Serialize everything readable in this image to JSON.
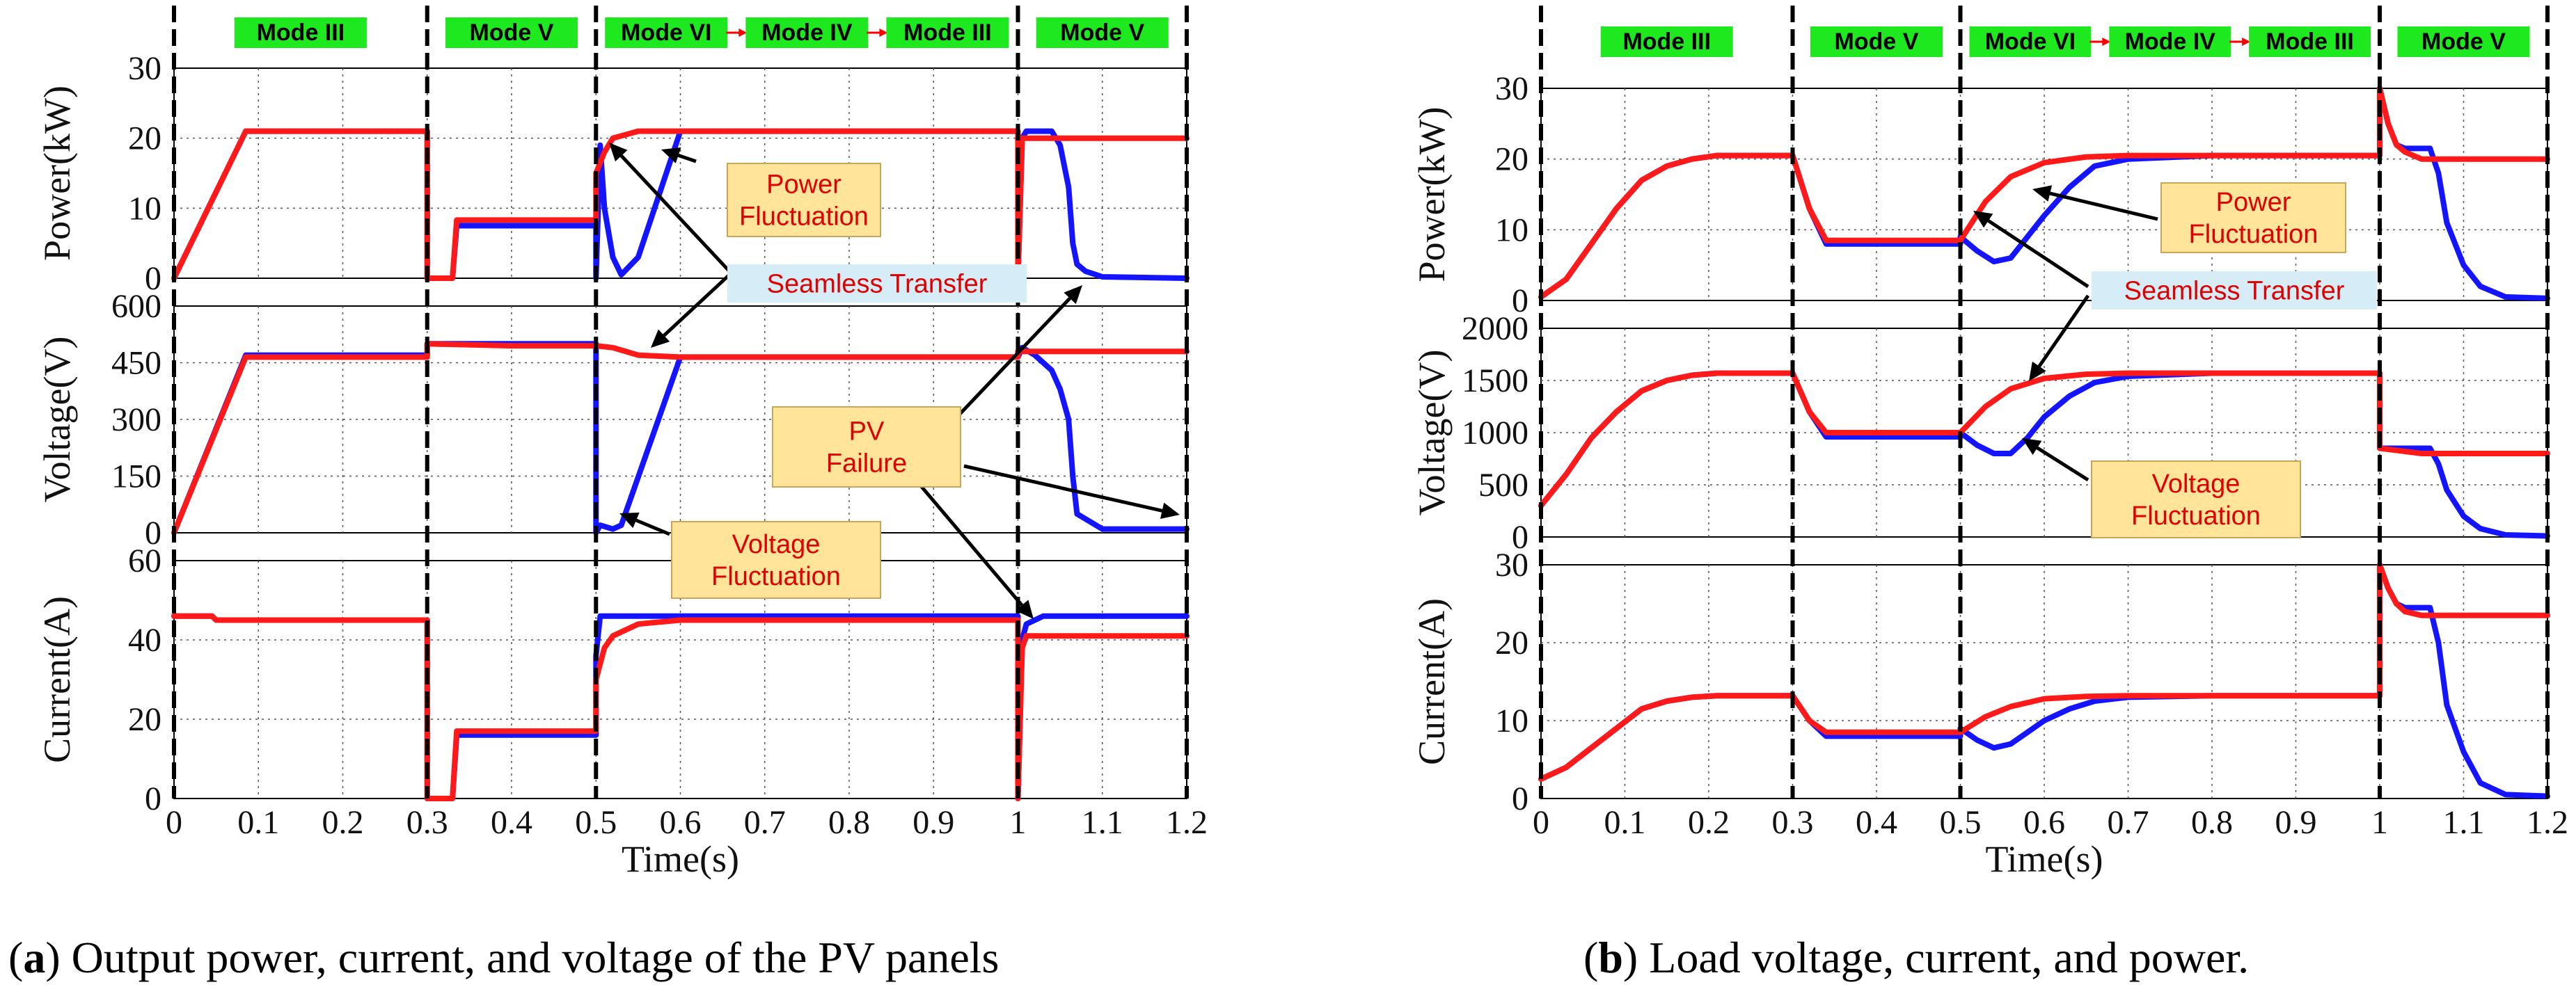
{
  "colors": {
    "pv": "#1414ff",
    "load": "#ff1a1a",
    "mode_fill": "#1ee81e",
    "callout_fill": "#ffe49a",
    "callout_text": "#e00000",
    "seamless_fill": "#d6edf7"
  },
  "figure": {
    "caption_a_letter": "a",
    "caption_a_text": "Output power, current, and voltage of the PV panels",
    "caption_b_letter": "b",
    "caption_b_text": "Load voltage, current, and power."
  },
  "chart_data": [
    {
      "id": "a",
      "type": "line",
      "xlabel": "Time(s)",
      "xlim": [
        0,
        1.2
      ],
      "xticks": [
        "0",
        "0.1",
        "0.2",
        "0.3",
        "0.4",
        "0.5",
        "0.6",
        "0.7",
        "0.8",
        "0.9",
        "1",
        "1.1",
        "1.2"
      ],
      "transitions": [
        0.3,
        0.5,
        1.0
      ],
      "modes": [
        {
          "t0": 0.0,
          "t1": 0.3,
          "labels": [
            "Mode III"
          ]
        },
        {
          "t0": 0.3,
          "t1": 0.5,
          "labels": [
            "Mode V"
          ]
        },
        {
          "t0": 0.5,
          "t1": 1.0,
          "labels": [
            "Mode VI",
            "Mode IV",
            "Mode III"
          ]
        },
        {
          "t0": 1.0,
          "t1": 1.2,
          "labels": [
            "Mode V"
          ]
        }
      ],
      "panels": [
        {
          "ylabel": "Power(kW)",
          "ylim": [
            0,
            30
          ],
          "yticks": [
            "0",
            "10",
            "20",
            "30"
          ],
          "series": [
            {
              "name": "blue",
              "x": [
                0,
                0.085,
                0.3,
                0.3,
                0.33,
                0.335,
                0.5,
                0.5,
                0.505,
                0.51,
                0.52,
                0.53,
                0.55,
                0.6,
                0.65,
                1.0,
                1.0,
                1.005,
                1.01,
                1.04,
                1.05,
                1.06,
                1.065,
                1.07,
                1.08,
                1.1,
                1.2
              ],
              "y": [
                0,
                21,
                21,
                0,
                0,
                7.5,
                7.5,
                0,
                19,
                10,
                3,
                0.5,
                3,
                21,
                21,
                21,
                0,
                20,
                21,
                21,
                19,
                13,
                5,
                2,
                1,
                0.2,
                0
              ]
            },
            {
              "name": "red",
              "x": [
                0,
                0.085,
                0.3,
                0.3,
                0.33,
                0.335,
                0.5,
                0.5,
                0.51,
                0.52,
                0.55,
                0.6,
                1.0,
                1.0,
                1.005,
                1.2
              ],
              "y": [
                0,
                21,
                21,
                0,
                0,
                8.3,
                8.3,
                15,
                18,
                20,
                21,
                21,
                21,
                0,
                20,
                20
              ]
            }
          ]
        },
        {
          "ylabel": "Voltage(V)",
          "ylim": [
            0,
            600
          ],
          "yticks": [
            "0",
            "150",
            "300",
            "450",
            "600"
          ],
          "series": [
            {
              "name": "blue",
              "x": [
                0,
                0.085,
                0.3,
                0.3,
                0.5,
                0.5,
                0.505,
                0.52,
                0.53,
                0.6,
                1.0,
                1.005,
                1.02,
                1.04,
                1.05,
                1.06,
                1.065,
                1.07,
                1.1,
                1.2
              ],
              "y": [
                0,
                470,
                470,
                500,
                500,
                0,
                20,
                10,
                20,
                465,
                465,
                490,
                470,
                430,
                380,
                300,
                150,
                50,
                10,
                10
              ]
            },
            {
              "name": "red",
              "x": [
                0,
                0.085,
                0.3,
                0.3,
                0.4,
                0.5,
                0.52,
                0.55,
                0.6,
                0.7,
                1.0,
                1.0,
                1.2
              ],
              "y": [
                0,
                465,
                465,
                500,
                495,
                495,
                490,
                470,
                465,
                465,
                465,
                480,
                480
              ]
            }
          ]
        },
        {
          "ylabel": "Current(A)",
          "ylim": [
            0,
            60
          ],
          "yticks": [
            "0",
            "20",
            "40",
            "60"
          ],
          "series": [
            {
              "name": "blue",
              "x": [
                0,
                0.045,
                0.05,
                0.3,
                0.3,
                0.33,
                0.335,
                0.5,
                0.5,
                0.505,
                0.6,
                1.0,
                1.0,
                1.005,
                1.01,
                1.02,
                1.03,
                1.2
              ],
              "y": [
                46,
                46,
                45,
                45,
                0,
                0,
                16,
                16,
                36,
                46,
                46,
                46,
                0,
                40,
                44,
                45,
                46,
                46
              ]
            },
            {
              "name": "red",
              "x": [
                0,
                0.045,
                0.05,
                0.3,
                0.3,
                0.33,
                0.335,
                0.5,
                0.5,
                0.51,
                0.52,
                0.55,
                0.6,
                1.0,
                1.0,
                1.005,
                1.01,
                1.02,
                1.2
              ],
              "y": [
                46,
                46,
                45,
                45,
                0,
                0,
                17,
                17,
                30,
                38,
                41,
                44,
                45,
                45,
                0,
                38,
                41,
                41,
                41
              ]
            }
          ]
        }
      ],
      "annotations": [
        {
          "lines": [
            "Power",
            "Fluctuation"
          ],
          "kind": "callout"
        },
        {
          "lines": [
            "Seamless Transfer"
          ],
          "kind": "seamless"
        },
        {
          "lines": [
            "PV",
            "Failure"
          ],
          "kind": "callout"
        },
        {
          "lines": [
            "Voltage",
            "Fluctuation"
          ],
          "kind": "callout"
        }
      ]
    },
    {
      "id": "b",
      "type": "line",
      "xlabel": "Time(s)",
      "xlim": [
        0,
        1.2
      ],
      "xticks": [
        "0",
        "0.1",
        "0.2",
        "0.3",
        "0.4",
        "0.5",
        "0.6",
        "0.7",
        "0.8",
        "0.9",
        "1",
        "1.1",
        "1.2"
      ],
      "transitions": [
        0.3,
        0.5,
        1.0
      ],
      "modes": [
        {
          "t0": 0.0,
          "t1": 0.3,
          "labels": [
            "Mode III"
          ]
        },
        {
          "t0": 0.3,
          "t1": 0.5,
          "labels": [
            "Mode V"
          ]
        },
        {
          "t0": 0.5,
          "t1": 1.0,
          "labels": [
            "Mode VI",
            "Mode IV",
            "Mode III"
          ]
        },
        {
          "t0": 1.0,
          "t1": 1.2,
          "labels": [
            "Mode V"
          ]
        }
      ],
      "panels": [
        {
          "ylabel": "Power(kW)",
          "ylim": [
            0,
            30
          ],
          "yticks": [
            "0",
            "10",
            "20",
            "30"
          ],
          "series": [
            {
              "name": "blue",
              "x": [
                0,
                0.03,
                0.06,
                0.09,
                0.12,
                0.15,
                0.18,
                0.21,
                0.3,
                0.3,
                0.32,
                0.34,
                0.5,
                0.5,
                0.52,
                0.54,
                0.56,
                0.58,
                0.6,
                0.63,
                0.66,
                0.7,
                0.8,
                1.0,
                1.0,
                1.01,
                1.02,
                1.03,
                1.06,
                1.07,
                1.08,
                1.1,
                1.12,
                1.15,
                1.2
              ],
              "y": [
                0.5,
                3,
                8,
                13,
                17,
                19,
                20,
                20.5,
                20.5,
                20.5,
                13,
                8,
                8,
                9,
                7,
                5.5,
                6,
                9,
                12,
                16,
                19,
                20,
                20.5,
                20.5,
                30,
                25,
                22,
                21.5,
                21.5,
                18,
                11,
                5,
                2,
                0.5,
                0.3
              ]
            },
            {
              "name": "red",
              "x": [
                0,
                0.03,
                0.06,
                0.09,
                0.12,
                0.15,
                0.18,
                0.21,
                0.3,
                0.3,
                0.32,
                0.34,
                0.5,
                0.5,
                0.53,
                0.56,
                0.6,
                0.65,
                0.7,
                1.0,
                1.0,
                1.01,
                1.02,
                1.03,
                1.05,
                1.2
              ],
              "y": [
                0.5,
                3,
                8,
                13,
                17,
                19,
                20,
                20.5,
                20.5,
                20.5,
                13,
                8.5,
                8.5,
                8.5,
                14,
                17.5,
                19.5,
                20.3,
                20.5,
                20.5,
                30,
                25,
                22,
                21,
                20,
                20
              ]
            }
          ]
        },
        {
          "ylabel": "Voltage(V)",
          "ylim": [
            0,
            2000
          ],
          "yticks": [
            "0",
            "500",
            "1000",
            "1500",
            "2000"
          ],
          "series": [
            {
              "name": "blue",
              "x": [
                0,
                0.03,
                0.06,
                0.09,
                0.12,
                0.15,
                0.18,
                0.21,
                0.3,
                0.3,
                0.32,
                0.34,
                0.5,
                0.5,
                0.52,
                0.54,
                0.56,
                0.58,
                0.6,
                0.63,
                0.66,
                0.7,
                0.8,
                1.0,
                1.0,
                1.01,
                1.06,
                1.07,
                1.08,
                1.1,
                1.12,
                1.15,
                1.2
              ],
              "y": [
                300,
                600,
                950,
                1200,
                1400,
                1500,
                1550,
                1570,
                1570,
                1570,
                1200,
                960,
                960,
                1000,
                880,
                800,
                800,
                950,
                1150,
                1350,
                1480,
                1540,
                1570,
                1570,
                850,
                850,
                850,
                700,
                450,
                200,
                80,
                20,
                10
              ]
            },
            {
              "name": "red",
              "x": [
                0,
                0.03,
                0.06,
                0.09,
                0.12,
                0.15,
                0.18,
                0.21,
                0.3,
                0.3,
                0.32,
                0.34,
                0.5,
                0.5,
                0.53,
                0.56,
                0.6,
                0.65,
                0.7,
                1.0,
                1.0,
                1.03,
                1.05,
                1.2
              ],
              "y": [
                300,
                600,
                950,
                1200,
                1400,
                1500,
                1550,
                1570,
                1570,
                1570,
                1200,
                1000,
                1000,
                1000,
                1250,
                1420,
                1520,
                1560,
                1570,
                1570,
                850,
                820,
                800,
                800
              ]
            }
          ]
        },
        {
          "ylabel": "Current(A)",
          "ylim": [
            0,
            30
          ],
          "yticks": [
            "0",
            "10",
            "20",
            "30"
          ],
          "series": [
            {
              "name": "blue",
              "x": [
                0,
                0.03,
                0.06,
                0.09,
                0.12,
                0.15,
                0.18,
                0.21,
                0.3,
                0.3,
                0.32,
                0.34,
                0.5,
                0.5,
                0.52,
                0.54,
                0.56,
                0.58,
                0.6,
                0.63,
                0.66,
                0.7,
                0.8,
                1.0,
                1.0,
                1.01,
                1.02,
                1.03,
                1.06,
                1.07,
                1.08,
                1.1,
                1.12,
                1.15,
                1.2
              ],
              "y": [
                2.5,
                4,
                6.5,
                9,
                11.5,
                12.5,
                13,
                13.2,
                13.2,
                13.2,
                10,
                8,
                8,
                9,
                7.5,
                6.5,
                7,
                8.5,
                10,
                11.5,
                12.5,
                13,
                13.2,
                13.2,
                30,
                27,
                25,
                24.5,
                24.5,
                20,
                12,
                6,
                2,
                0.5,
                0.3
              ]
            },
            {
              "name": "red",
              "x": [
                0,
                0.03,
                0.06,
                0.09,
                0.12,
                0.15,
                0.18,
                0.21,
                0.3,
                0.3,
                0.32,
                0.34,
                0.5,
                0.5,
                0.53,
                0.56,
                0.6,
                0.65,
                0.7,
                1.0,
                1.0,
                1.01,
                1.02,
                1.03,
                1.05,
                1.2
              ],
              "y": [
                2.5,
                4,
                6.5,
                9,
                11.5,
                12.5,
                13,
                13.2,
                13.2,
                13.2,
                10,
                8.5,
                8.5,
                8.5,
                10.5,
                11.8,
                12.8,
                13.1,
                13.2,
                13.2,
                30,
                27,
                25,
                24,
                23.5,
                23.5
              ]
            }
          ]
        }
      ],
      "annotations": [
        {
          "lines": [
            "Power",
            "Fluctuation"
          ],
          "kind": "callout"
        },
        {
          "lines": [
            "Seamless Transfer"
          ],
          "kind": "seamless"
        },
        {
          "lines": [
            "Voltage",
            "Fluctuation"
          ],
          "kind": "callout"
        }
      ]
    }
  ]
}
